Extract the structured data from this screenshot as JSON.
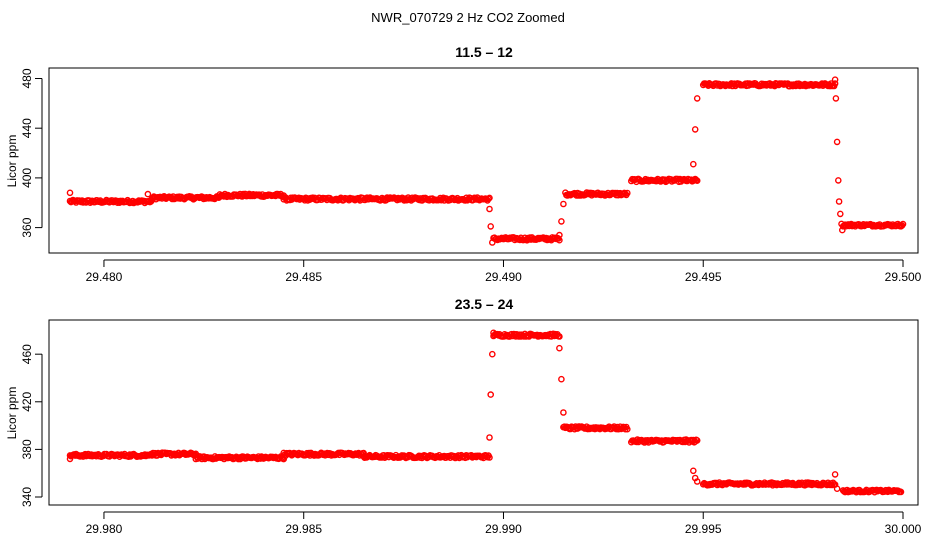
{
  "page_title": "NWR_070729  2 Hz CO2 Zoomed",
  "chart_data": [
    {
      "type": "scatter",
      "title": "11.5 – 12",
      "xlabel": "",
      "ylabel": "Licor ppm",
      "xlim": [
        29.479,
        29.5
      ],
      "ylim": [
        346,
        482
      ],
      "xticks": [
        29.48,
        29.485,
        29.49,
        29.495,
        29.5
      ],
      "xtick_labels": [
        "29.480",
        "29.485",
        "29.490",
        "29.495",
        "29.500"
      ],
      "yticks": [
        360,
        400,
        440,
        480
      ],
      "ytick_labels": [
        "360",
        "400",
        "440",
        "480"
      ],
      "grid": false,
      "marker": "open-circle",
      "color": "#ff0000",
      "segments": [
        {
          "x_start": 29.47915,
          "x_end": 29.4812,
          "level": 381,
          "noise": 1.2
        },
        {
          "x_start": 29.4812,
          "x_end": 29.4829,
          "level": 384,
          "noise": 1.2
        },
        {
          "x_start": 29.4829,
          "x_end": 29.4845,
          "level": 386,
          "noise": 1.2
        },
        {
          "x_start": 29.4845,
          "x_end": 29.48965,
          "level": 383,
          "noise": 1.2
        },
        {
          "x_start": 29.48975,
          "x_end": 29.4914,
          "level": 351,
          "noise": 1.2
        },
        {
          "x_start": 29.49155,
          "x_end": 29.4931,
          "level": 387,
          "noise": 1.2
        },
        {
          "x_start": 29.4932,
          "x_end": 29.49485,
          "level": 398,
          "noise": 1.2
        },
        {
          "x_start": 29.495,
          "x_end": 29.4983,
          "level": 475,
          "noise": 1.2
        },
        {
          "x_start": 29.4985,
          "x_end": 29.5,
          "level": 362,
          "noise": 1.0
        }
      ],
      "extra_points": [
        {
          "x": 29.47915,
          "y": 388
        },
        {
          "x": 29.4811,
          "y": 387
        },
        {
          "x": 29.48965,
          "y": 375
        },
        {
          "x": 29.48968,
          "y": 361
        },
        {
          "x": 29.48972,
          "y": 348
        },
        {
          "x": 29.4914,
          "y": 354
        },
        {
          "x": 29.49145,
          "y": 365
        },
        {
          "x": 29.4915,
          "y": 379
        },
        {
          "x": 29.49475,
          "y": 411
        },
        {
          "x": 29.4948,
          "y": 439
        },
        {
          "x": 29.49485,
          "y": 464
        },
        {
          "x": 29.4983,
          "y": 479
        },
        {
          "x": 29.49832,
          "y": 464
        },
        {
          "x": 29.49835,
          "y": 429
        },
        {
          "x": 29.49838,
          "y": 398
        },
        {
          "x": 29.4984,
          "y": 381
        },
        {
          "x": 29.49843,
          "y": 371
        },
        {
          "x": 29.49846,
          "y": 363
        },
        {
          "x": 29.49848,
          "y": 358
        }
      ]
    },
    {
      "type": "scatter",
      "title": "23.5 – 24",
      "xlabel": "",
      "ylabel": "Licor ppm",
      "xlim": [
        29.979,
        30.0
      ],
      "ylim": [
        340,
        482
      ],
      "xticks": [
        29.98,
        29.985,
        29.99,
        29.995,
        30.0
      ],
      "xtick_labels": [
        "29.980",
        "29.985",
        "29.990",
        "29.995",
        "30.000"
      ],
      "yticks": [
        340,
        380,
        420,
        460
      ],
      "ytick_labels": [
        "340",
        "380",
        "420",
        "460"
      ],
      "grid": false,
      "marker": "open-circle",
      "color": "#ff0000",
      "segments": [
        {
          "x_start": 29.97915,
          "x_end": 29.9811,
          "level": 375,
          "noise": 1.2
        },
        {
          "x_start": 29.9811,
          "x_end": 29.9823,
          "level": 376,
          "noise": 1.2
        },
        {
          "x_start": 29.9823,
          "x_end": 29.9845,
          "level": 373,
          "noise": 1.2
        },
        {
          "x_start": 29.9845,
          "x_end": 29.9865,
          "level": 376,
          "noise": 1.2
        },
        {
          "x_start": 29.9865,
          "x_end": 29.98965,
          "level": 374,
          "noise": 1.2
        },
        {
          "x_start": 29.98975,
          "x_end": 29.9914,
          "level": 476,
          "noise": 1.2
        },
        {
          "x_start": 29.9915,
          "x_end": 29.9931,
          "level": 398,
          "noise": 1.2
        },
        {
          "x_start": 29.9932,
          "x_end": 29.99485,
          "level": 387,
          "noise": 1.2
        },
        {
          "x_start": 29.995,
          "x_end": 29.9983,
          "level": 351,
          "noise": 1.2
        },
        {
          "x_start": 29.9985,
          "x_end": 29.99995,
          "level": 345,
          "noise": 1.0
        }
      ],
      "extra_points": [
        {
          "x": 29.97915,
          "y": 372
        },
        {
          "x": 29.98965,
          "y": 390
        },
        {
          "x": 29.98968,
          "y": 426
        },
        {
          "x": 29.98972,
          "y": 460
        },
        {
          "x": 29.98975,
          "y": 478
        },
        {
          "x": 29.9914,
          "y": 465
        },
        {
          "x": 29.99145,
          "y": 439
        },
        {
          "x": 29.9915,
          "y": 411
        },
        {
          "x": 29.99475,
          "y": 362
        },
        {
          "x": 29.9948,
          "y": 356
        },
        {
          "x": 29.99485,
          "y": 353
        },
        {
          "x": 29.9983,
          "y": 359
        },
        {
          "x": 29.99835,
          "y": 347
        }
      ]
    }
  ]
}
